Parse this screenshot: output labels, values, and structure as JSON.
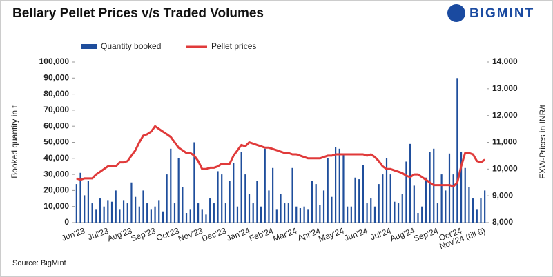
{
  "chart_data": {
    "type": "bar-line",
    "title": "Bellary Pellet Prices v/s Traded Volumes",
    "brand": "BIGMINT",
    "source": "Source: BigMint",
    "y_label": "Booked quantity in t",
    "y2_label": "EXW-Prices in INR/t",
    "legend_position": "top",
    "categories": [
      "Jun'23",
      null,
      null,
      null,
      null,
      null,
      "Jul'23",
      null,
      null,
      null,
      null,
      null,
      "Aug'23",
      null,
      null,
      null,
      null,
      null,
      "Sep'23",
      null,
      null,
      null,
      null,
      null,
      "Oct'23",
      null,
      null,
      null,
      null,
      null,
      "Nov'23",
      null,
      null,
      null,
      null,
      null,
      "Dec'23",
      null,
      null,
      null,
      null,
      null,
      "Jan'24",
      null,
      null,
      null,
      null,
      null,
      "Feb'24",
      null,
      null,
      null,
      null,
      null,
      "Mar'24",
      null,
      null,
      null,
      null,
      null,
      "Apr'24",
      null,
      null,
      null,
      null,
      null,
      "May'24",
      null,
      null,
      null,
      null,
      null,
      "Jun'24",
      null,
      null,
      null,
      null,
      null,
      "Jul'24",
      null,
      null,
      null,
      null,
      null,
      "Aug'24",
      null,
      null,
      null,
      null,
      null,
      "Sep'24",
      null,
      null,
      null,
      null,
      null,
      "Oct'24",
      null,
      null,
      null,
      null,
      null,
      "Nov'24 (till 8)",
      null,
      null
    ],
    "series": [
      {
        "name": "Quantity booked",
        "kind": "bar",
        "color": "#1f4e9c",
        "values": [
          24000,
          31000,
          17000,
          26000,
          12000,
          8000,
          15000,
          10000,
          14000,
          13000,
          20000,
          8000,
          14000,
          12000,
          25000,
          16000,
          10000,
          20000,
          12000,
          8000,
          10000,
          14000,
          7000,
          30000,
          46000,
          12000,
          40000,
          22000,
          6000,
          8000,
          50000,
          12000,
          8000,
          5000,
          15000,
          12000,
          32000,
          30000,
          12000,
          26000,
          37000,
          10000,
          44000,
          30000,
          18000,
          12000,
          26000,
          10000,
          46000,
          20000,
          34000,
          8000,
          18000,
          12000,
          12000,
          34000,
          10000,
          9000,
          10000,
          8000,
          26000,
          24000,
          11000,
          20000,
          40000,
          16000,
          47000,
          46000,
          42000,
          10000,
          10000,
          28000,
          27000,
          36000,
          12000,
          15000,
          10000,
          24000,
          30000,
          40000,
          30000,
          13000,
          12000,
          18000,
          38000,
          49000,
          23000,
          6000,
          10000,
          28000,
          44000,
          46000,
          12000,
          30000,
          20000,
          43000,
          30000,
          90000,
          44000,
          34000,
          22000,
          15000,
          8000,
          15000,
          20000
        ]
      },
      {
        "name": "Pellet prices",
        "kind": "line",
        "axis": "y2",
        "color": "#e03a3a",
        "values": [
          9650,
          9600,
          9650,
          9650,
          9650,
          9800,
          9900,
          10000,
          10100,
          10100,
          10100,
          10250,
          10250,
          10300,
          10500,
          10700,
          11000,
          11250,
          11300,
          11400,
          11600,
          11500,
          11400,
          11300,
          11200,
          11000,
          10800,
          10700,
          10600,
          10600,
          10500,
          10300,
          10000,
          10000,
          10050,
          10050,
          10100,
          10200,
          10200,
          10200,
          10500,
          10700,
          10900,
          10850,
          11000,
          10950,
          10900,
          10850,
          10800,
          10800,
          10750,
          10700,
          10650,
          10600,
          10600,
          10550,
          10550,
          10500,
          10450,
          10400,
          10400,
          10400,
          10400,
          10450,
          10500,
          10500,
          10550,
          10550,
          10550,
          10550,
          10550,
          10550,
          10550,
          10550,
          10500,
          10550,
          10450,
          10300,
          10100,
          10000,
          10000,
          9950,
          9900,
          9850,
          9750,
          9700,
          9800,
          9800,
          9700,
          9600,
          9500,
          9400,
          9400,
          9400,
          9400,
          9400,
          9350,
          9500,
          10100,
          10600,
          10600,
          10550,
          10300,
          10250,
          10350
        ]
      }
    ],
    "ylim": [
      0,
      100000
    ],
    "yticks": [
      {
        "value": 0,
        "label": "0"
      },
      {
        "value": 10000,
        "label": "10,000"
      },
      {
        "value": 20000,
        "label": "20,000"
      },
      {
        "value": 30000,
        "label": "30,000"
      },
      {
        "value": 40000,
        "label": "40,000"
      },
      {
        "value": 50000,
        "label": "50,000"
      },
      {
        "value": 60000,
        "label": "60,000"
      },
      {
        "value": 70000,
        "label": "70,000"
      },
      {
        "value": 80000,
        "label": "80,000"
      },
      {
        "value": 90000,
        "label": "90,000"
      },
      {
        "value": 100000,
        "label": "100,000"
      }
    ],
    "y2lim": [
      8000,
      14000
    ],
    "y2ticks": [
      {
        "value": 8000,
        "label": "8,000"
      },
      {
        "value": 9000,
        "label": "9,000"
      },
      {
        "value": 10000,
        "label": "10,000"
      },
      {
        "value": 11000,
        "label": "11,000"
      },
      {
        "value": 12000,
        "label": "12,000"
      },
      {
        "value": 13000,
        "label": "13,000"
      },
      {
        "value": 14000,
        "label": "14,000"
      }
    ],
    "grid": false
  }
}
